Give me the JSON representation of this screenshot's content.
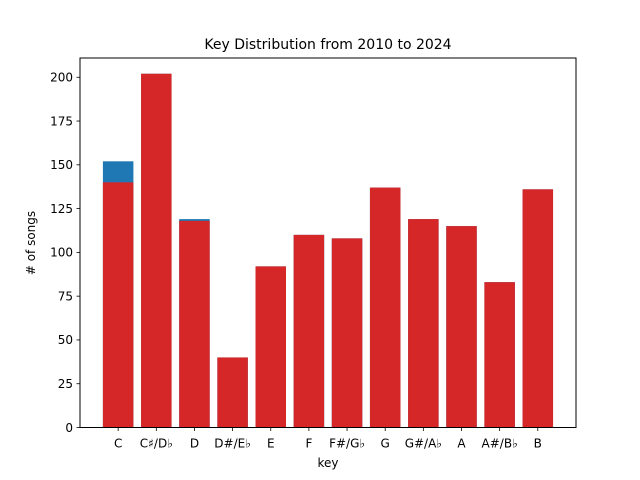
{
  "chart_data": {
    "type": "bar",
    "title": "Key Distribution from 2010 to 2024",
    "xlabel": "key",
    "ylabel": "# of songs",
    "categories": [
      "C",
      "C♯/D♭",
      "D",
      "D#/E♭",
      "E",
      "F",
      "F#/G♭",
      "G",
      "G#/A♭",
      "A",
      "A#/B♭",
      "B"
    ],
    "series": [
      {
        "color": "#1f77b4",
        "values": [
          152,
          202,
          119,
          40,
          92,
          110,
          108,
          137,
          119,
          115,
          83,
          136
        ]
      },
      {
        "color": "#d62728",
        "values": [
          140,
          202,
          118,
          40,
          92,
          110,
          108,
          137,
          119,
          115,
          83,
          136
        ]
      }
    ],
    "ylim": [
      0,
      211
    ],
    "yticks": [
      0,
      25,
      50,
      75,
      100,
      125,
      150,
      175,
      200
    ],
    "grid": false,
    "legend": "none"
  }
}
